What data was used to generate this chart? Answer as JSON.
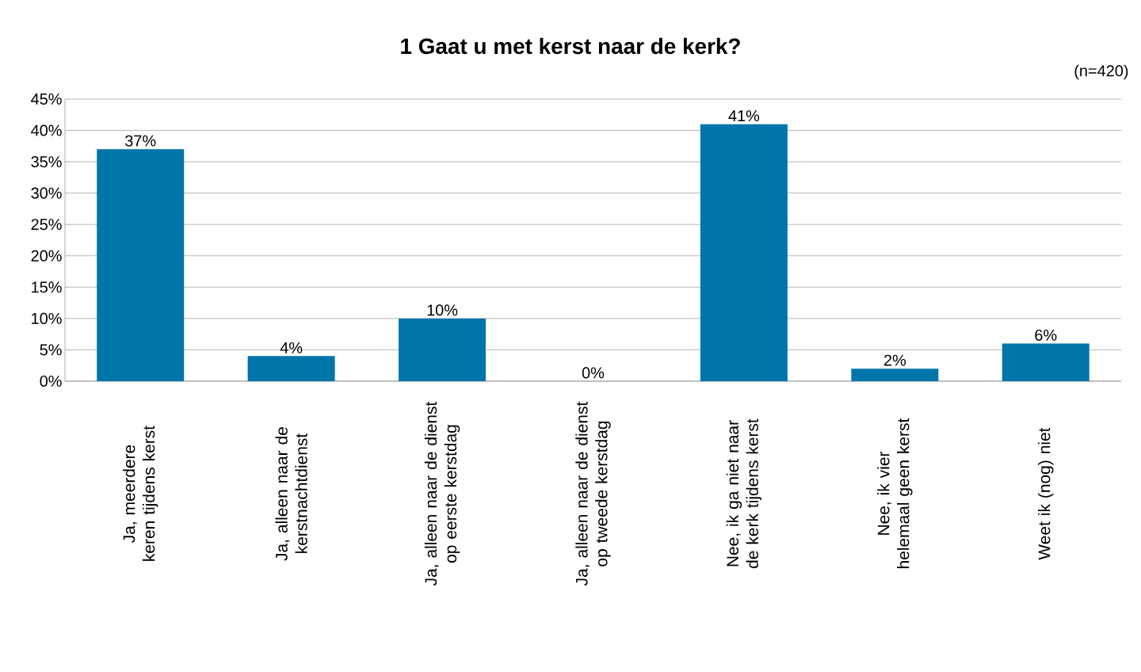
{
  "chart_data": {
    "type": "bar",
    "title": "1 Gaat u met kerst naar de kerk?",
    "annotations": [
      "(n=420)"
    ],
    "categories": [
      "Ja, meerdere keren tijdens kerst",
      "Ja, alleen naar de kerstnachtdienst",
      "Ja, alleen naar de dienst op eerste kerstdag",
      "Ja, alleen naar de dienst op tweede kerstdag",
      "Nee, ik ga niet naar de kerk tijdens kerst",
      "Nee, ik vier helemaal geen kerst",
      "Weet ik (nog) niet"
    ],
    "values": [
      37,
      4,
      10,
      0,
      41,
      2,
      6
    ],
    "value_labels": [
      "37%",
      "4%",
      "10%",
      "0%",
      "41%",
      "2%",
      "6%"
    ],
    "color": "#0075aa",
    "ylim": [
      0,
      45
    ],
    "yticks": [
      {
        "value": 0,
        "label": "0%"
      },
      {
        "value": 5,
        "label": "5%"
      },
      {
        "value": 10,
        "label": "10%"
      },
      {
        "value": 15,
        "label": "15%"
      },
      {
        "value": 20,
        "label": "20%"
      },
      {
        "value": 25,
        "label": "25%"
      },
      {
        "value": 30,
        "label": "30%"
      },
      {
        "value": 35,
        "label": "35%"
      },
      {
        "value": 40,
        "label": "40%"
      },
      {
        "value": 45,
        "label": "45%"
      }
    ],
    "grid": "y"
  }
}
